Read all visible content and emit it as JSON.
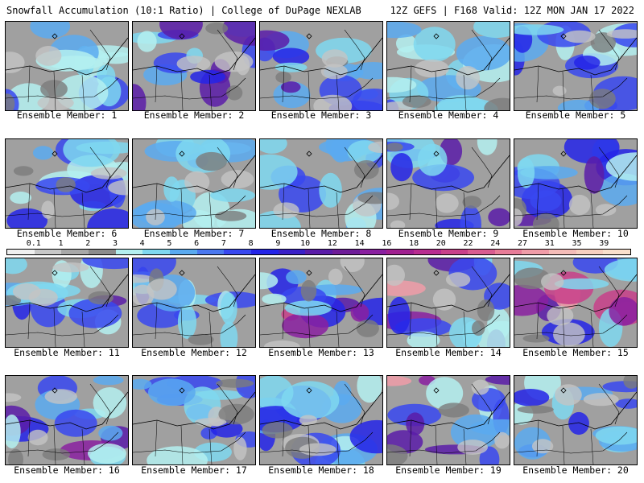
{
  "header": {
    "left_title": "Snowfall Accumulation (10:1 Ratio) | College of DuPage NEXLAB",
    "right_title": "12Z GEFS | F168 Valid: 12Z MON JAN 17 2022"
  },
  "colorbar": {
    "ticks": [
      "0.1",
      "1",
      "2",
      "3",
      "4",
      "5",
      "6",
      "7",
      "8",
      "9",
      "10",
      "12",
      "14",
      "16",
      "18",
      "20",
      "22",
      "24",
      "27",
      "31",
      "35",
      "39"
    ],
    "colors": [
      "#f0f0f0",
      "#c8c8c8",
      "#a8a8a8",
      "#8c8c8c",
      "#b4f0f0",
      "#7fd8f0",
      "#5aaaf0",
      "#4a78f0",
      "#3848f0",
      "#2424e8",
      "#3a20c8",
      "#5a1ca8",
      "#6e1c98",
      "#8a20a0",
      "#a02090",
      "#b82c90",
      "#c8408a",
      "#d85c90",
      "#e87c98",
      "#f09ca8",
      "#f4bcb8",
      "#f8d0c0",
      "#fae0cc"
    ]
  },
  "panels": [
    {
      "label": "Ensemble Member: 1",
      "intensity": 0.35
    },
    {
      "label": "Ensemble Member: 2",
      "intensity": 0.55
    },
    {
      "label": "Ensemble Member: 3",
      "intensity": 0.5
    },
    {
      "label": "Ensemble Member: 4",
      "intensity": 0.3
    },
    {
      "label": "Ensemble Member: 5",
      "intensity": 0.45
    },
    {
      "label": "Ensemble Member: 6",
      "intensity": 0.45
    },
    {
      "label": "Ensemble Member: 7",
      "intensity": 0.3
    },
    {
      "label": "Ensemble Member: 8",
      "intensity": 0.35
    },
    {
      "label": "Ensemble Member: 9",
      "intensity": 0.55
    },
    {
      "label": "Ensemble Member: 10",
      "intensity": 0.5
    },
    {
      "label": "Ensemble Member: 11",
      "intensity": 0.55
    },
    {
      "label": "Ensemble Member: 12",
      "intensity": 0.4
    },
    {
      "label": "Ensemble Member: 13",
      "intensity": 0.7
    },
    {
      "label": "Ensemble Member: 14",
      "intensity": 0.8
    },
    {
      "label": "Ensemble Member: 15",
      "intensity": 0.85
    },
    {
      "label": "Ensemble Member: 16",
      "intensity": 0.6
    },
    {
      "label": "Ensemble Member: 17",
      "intensity": 0.4
    },
    {
      "label": "Ensemble Member: 18",
      "intensity": 0.5
    },
    {
      "label": "Ensemble Member: 19",
      "intensity": 0.75
    },
    {
      "label": "Ensemble Member: 20",
      "intensity": 0.55
    }
  ]
}
